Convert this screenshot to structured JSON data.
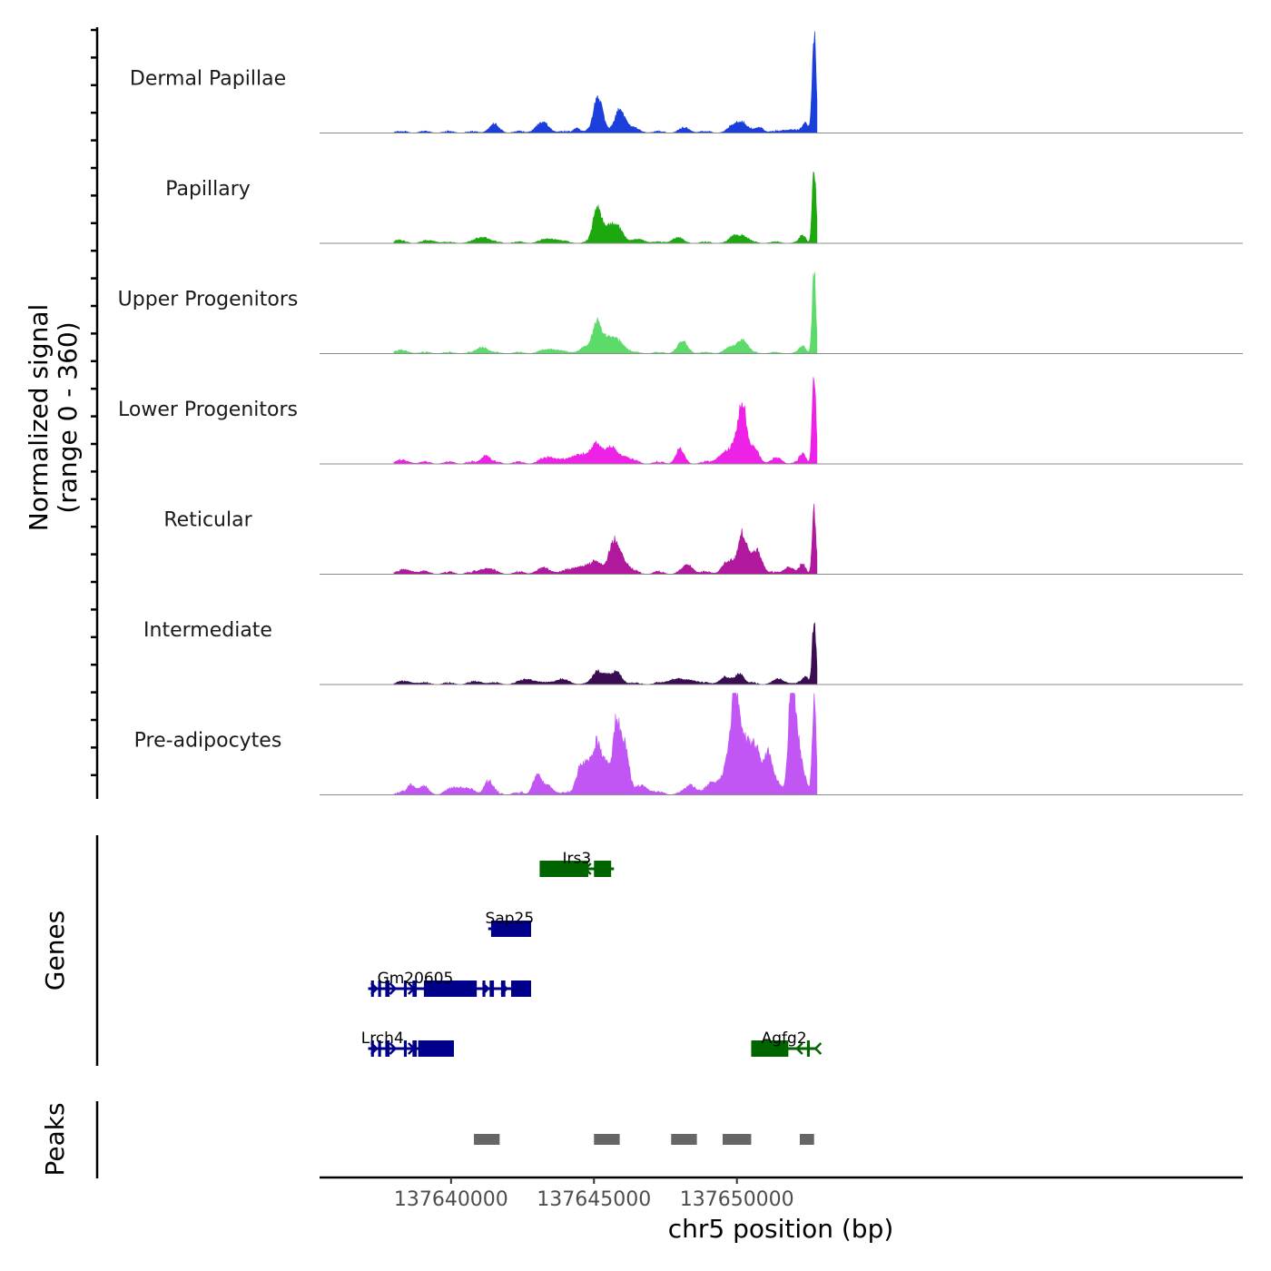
{
  "chart_data": {
    "type": "genome-browser",
    "xlabel": "chr5 position (bp)",
    "ylabel_line1": "Normalized signal",
    "ylabel_line2": "(range 0 - 360)",
    "genes_label": "Genes",
    "peaks_label": "Peaks",
    "xlim": [
      137635400,
      137667700
    ],
    "x_ticks": [
      {
        "value": 137640000,
        "label": "137640000"
      },
      {
        "value": 137645000,
        "label": "137645000"
      },
      {
        "value": 137650000,
        "label": "137650000"
      }
    ],
    "coverage_tracks": [
      {
        "name": "Dermal Papillae",
        "color": "#1a3fdb",
        "noise": 0.025,
        "peaks": [
          [
            137637500,
            0.01,
            400
          ],
          [
            137641500,
            0.07,
            250
          ],
          [
            137643200,
            0.09,
            320
          ],
          [
            137644400,
            0.05,
            150
          ],
          [
            137645150,
            0.36,
            220
          ],
          [
            137645900,
            0.2,
            230
          ],
          [
            137646200,
            0.05,
            400
          ],
          [
            137648200,
            0.04,
            250
          ],
          [
            137649900,
            0.06,
            250
          ],
          [
            137650200,
            0.09,
            250
          ],
          [
            137650800,
            0.05,
            200
          ],
          [
            137651800,
            0.03,
            300
          ],
          [
            137652400,
            0.09,
            150
          ],
          [
            137652700,
            1.0,
            90
          ]
        ]
      },
      {
        "name": "Papillary",
        "color": "#1ea80f",
        "noise": 0.02,
        "peaks": [
          [
            137638100,
            0.02,
            300
          ],
          [
            137639300,
            0.02,
            300
          ],
          [
            137641100,
            0.06,
            300
          ],
          [
            137643500,
            0.04,
            400
          ],
          [
            137645100,
            0.3,
            200
          ],
          [
            137645400,
            0.12,
            300
          ],
          [
            137645800,
            0.15,
            300
          ],
          [
            137646600,
            0.03,
            300
          ],
          [
            137647900,
            0.05,
            250
          ],
          [
            137649900,
            0.06,
            200
          ],
          [
            137650200,
            0.07,
            250
          ],
          [
            137652300,
            0.07,
            150
          ],
          [
            137652700,
            0.7,
            90
          ]
        ]
      },
      {
        "name": "Upper Progenitors",
        "color": "#5cdb6a",
        "noise": 0.02,
        "peaks": [
          [
            137638200,
            0.02,
            400
          ],
          [
            137641100,
            0.06,
            250
          ],
          [
            137643500,
            0.04,
            400
          ],
          [
            137644700,
            0.06,
            300
          ],
          [
            137645100,
            0.28,
            200
          ],
          [
            137645400,
            0.11,
            250
          ],
          [
            137645800,
            0.13,
            350
          ],
          [
            137648100,
            0.11,
            250
          ],
          [
            137649800,
            0.05,
            300
          ],
          [
            137650200,
            0.12,
            250
          ],
          [
            137652300,
            0.07,
            150
          ],
          [
            137652700,
            0.77,
            90
          ]
        ]
      },
      {
        "name": "Lower Progenitors",
        "color": "#ee22e6",
        "noise": 0.03,
        "peaks": [
          [
            137638300,
            0.02,
            400
          ],
          [
            137641200,
            0.08,
            200
          ],
          [
            137643500,
            0.06,
            400
          ],
          [
            137644500,
            0.09,
            400
          ],
          [
            137645100,
            0.18,
            250
          ],
          [
            137645600,
            0.14,
            300
          ],
          [
            137646100,
            0.06,
            300
          ],
          [
            137648000,
            0.13,
            200
          ],
          [
            137649500,
            0.08,
            300
          ],
          [
            137650000,
            0.2,
            300
          ],
          [
            137650200,
            0.48,
            180
          ],
          [
            137650600,
            0.14,
            250
          ],
          [
            137651400,
            0.04,
            250
          ],
          [
            137652300,
            0.09,
            150
          ],
          [
            137652700,
            0.85,
            90
          ]
        ]
      },
      {
        "name": "Reticular",
        "color": "#b0189e",
        "noise": 0.035,
        "peaks": [
          [
            137638500,
            0.03,
            400
          ],
          [
            137641200,
            0.05,
            300
          ],
          [
            137643300,
            0.04,
            400
          ],
          [
            137644500,
            0.07,
            400
          ],
          [
            137645100,
            0.12,
            250
          ],
          [
            137645700,
            0.27,
            250
          ],
          [
            137646000,
            0.12,
            300
          ],
          [
            137648300,
            0.08,
            250
          ],
          [
            137649700,
            0.11,
            300
          ],
          [
            137650200,
            0.4,
            220
          ],
          [
            137650700,
            0.22,
            250
          ],
          [
            137651800,
            0.07,
            200
          ],
          [
            137652300,
            0.08,
            150
          ],
          [
            137652700,
            0.6,
            90
          ]
        ]
      },
      {
        "name": "Intermediate",
        "color": "#3a0d52",
        "noise": 0.025,
        "peaks": [
          [
            137638500,
            0.02,
            400
          ],
          [
            137641000,
            0.02,
            300
          ],
          [
            137642700,
            0.05,
            300
          ],
          [
            137643800,
            0.04,
            400
          ],
          [
            137645100,
            0.12,
            200
          ],
          [
            137645400,
            0.08,
            200
          ],
          [
            137645800,
            0.11,
            250
          ],
          [
            137647800,
            0.05,
            300
          ],
          [
            137648400,
            0.04,
            300
          ],
          [
            137649600,
            0.06,
            300
          ],
          [
            137650100,
            0.1,
            200
          ],
          [
            137651500,
            0.04,
            300
          ],
          [
            137652400,
            0.07,
            150
          ],
          [
            137652700,
            0.6,
            90
          ]
        ]
      },
      {
        "name": "Pre-adipocytes",
        "color": "#c256f5",
        "noise": 0.04,
        "peaks": [
          [
            137638600,
            0.09,
            180
          ],
          [
            137639000,
            0.06,
            250
          ],
          [
            137640300,
            0.07,
            400
          ],
          [
            137641300,
            0.13,
            200
          ],
          [
            137643000,
            0.18,
            200
          ],
          [
            137643400,
            0.08,
            250
          ],
          [
            137644500,
            0.24,
            200
          ],
          [
            137644800,
            0.27,
            200
          ],
          [
            137645100,
            0.45,
            180
          ],
          [
            137645400,
            0.3,
            200
          ],
          [
            137645800,
            0.72,
            180
          ],
          [
            137646100,
            0.45,
            180
          ],
          [
            137646700,
            0.08,
            300
          ],
          [
            137648400,
            0.09,
            250
          ],
          [
            137649200,
            0.12,
            300
          ],
          [
            137649700,
            0.3,
            250
          ],
          [
            137649950,
            0.95,
            180
          ],
          [
            137650300,
            0.5,
            250
          ],
          [
            137650700,
            0.4,
            250
          ],
          [
            137651100,
            0.36,
            180
          ],
          [
            137651400,
            0.1,
            250
          ],
          [
            137651900,
            0.9,
            150
          ],
          [
            137652100,
            0.55,
            200
          ],
          [
            137652400,
            0.1,
            150
          ],
          [
            137652700,
            0.95,
            90
          ]
        ]
      }
    ],
    "genes": [
      {
        "name": "Irs3",
        "strand": "-",
        "color": "#006400",
        "row": 0,
        "start": 137643100,
        "end": 137645700,
        "exons": [
          [
            137643100,
            137644800
          ],
          [
            137645000,
            137645600
          ]
        ]
      },
      {
        "name": "Sap25",
        "strand": "-",
        "color": "#00008b",
        "row": 1,
        "start": 137641300,
        "end": 137642800,
        "exons": [
          [
            137641400,
            137642800
          ]
        ]
      },
      {
        "name": "Gm20605",
        "strand": "+",
        "color": "#00008b",
        "row": 2,
        "start": 137637100,
        "end": 137642800,
        "exons": [
          [
            137637200,
            137637300
          ],
          [
            137637450,
            137637550
          ],
          [
            137637700,
            137637850
          ],
          [
            137638350,
            137638450
          ],
          [
            137638650,
            137638800
          ],
          [
            137639050,
            137640900
          ],
          [
            137641100,
            137641200
          ],
          [
            137641350,
            137641500
          ],
          [
            137641750,
            137641900
          ],
          [
            137642100,
            137642800
          ]
        ]
      },
      {
        "name": "Lrch4",
        "strand": "+",
        "color": "#00008b",
        "row": 3,
        "start": 137637100,
        "end": 137640100,
        "exons": [
          [
            137637200,
            137637300
          ],
          [
            137637450,
            137637550
          ],
          [
            137637700,
            137637850
          ],
          [
            137638350,
            137638450
          ],
          [
            137638650,
            137638800
          ],
          [
            137638850,
            137640100
          ]
        ]
      },
      {
        "name": "Agfg2",
        "strand": "-",
        "color": "#006400",
        "row": 3,
        "start": 137650500,
        "end": 137652800,
        "exons": [
          [
            137650500,
            137651800
          ],
          [
            137652450,
            137652550
          ]
        ]
      }
    ],
    "peaks": [
      [
        137640800,
        137641700
      ],
      [
        137645000,
        137645900
      ],
      [
        137647700,
        137648600
      ],
      [
        137649500,
        137650500
      ],
      [
        137652200,
        137652700
      ]
    ]
  }
}
